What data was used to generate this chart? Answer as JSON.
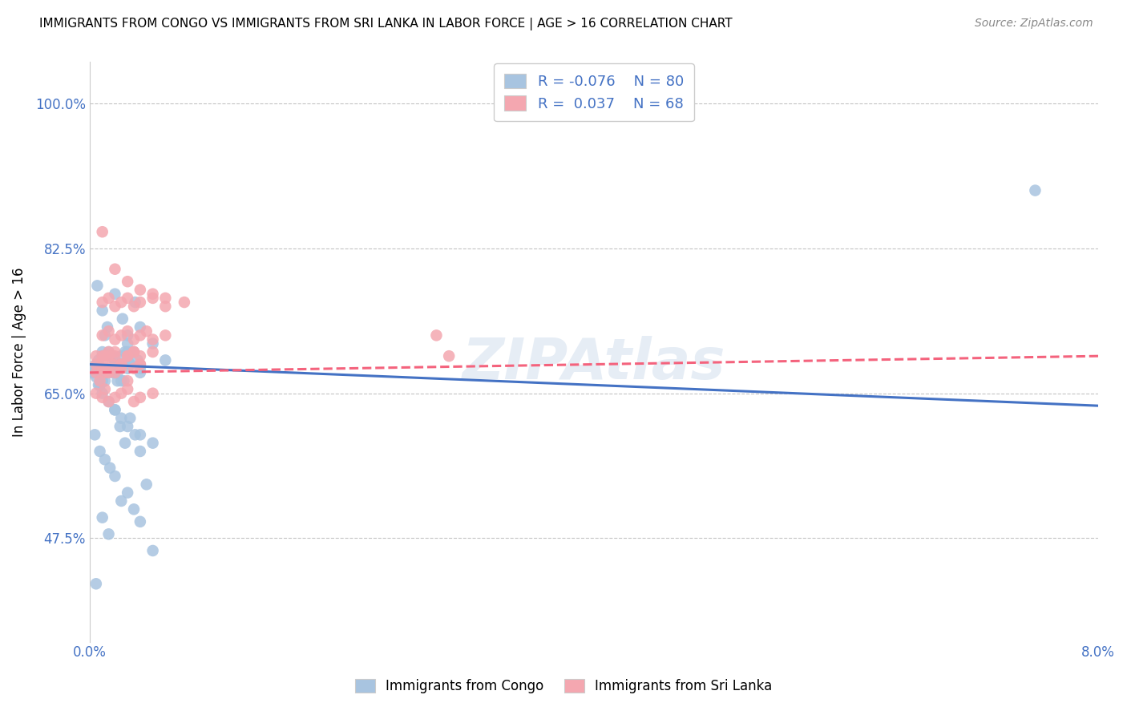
{
  "title": "IMMIGRANTS FROM CONGO VS IMMIGRANTS FROM SRI LANKA IN LABOR FORCE | AGE > 16 CORRELATION CHART",
  "source": "Source: ZipAtlas.com",
  "ylabel": "In Labor Force | Age > 16",
  "xlim": [
    0.0,
    0.08
  ],
  "ylim": [
    0.35,
    1.05
  ],
  "yticks": [
    0.475,
    0.65,
    0.825,
    1.0
  ],
  "ytick_labels": [
    "47.5%",
    "65.0%",
    "82.5%",
    "100.0%"
  ],
  "xticks": [
    0.0,
    0.08
  ],
  "xtick_labels": [
    "0.0%",
    "8.0%"
  ],
  "congo_R": -0.076,
  "congo_N": 80,
  "srilanka_R": 0.037,
  "srilanka_N": 68,
  "congo_color": "#a8c4e0",
  "srilanka_color": "#f4a7b0",
  "congo_line_color": "#4472c4",
  "srilanka_line_color": "#f4637d",
  "watermark": "ZIPAtlas",
  "legend_label_congo": "Immigrants from Congo",
  "legend_label_srilanka": "Immigrants from Sri Lanka",
  "congo_line_x": [
    0.0,
    0.08
  ],
  "congo_line_y": [
    0.685,
    0.635
  ],
  "srilanka_line_x": [
    0.0,
    0.08
  ],
  "srilanka_line_y": [
    0.675,
    0.695
  ],
  "congo_x": [
    0.0005,
    0.001,
    0.0008,
    0.0012,
    0.0015,
    0.0018,
    0.002,
    0.0022,
    0.0025,
    0.003,
    0.0005,
    0.001,
    0.0007,
    0.0009,
    0.0015,
    0.002,
    0.0025,
    0.003,
    0.0035,
    0.004,
    0.0005,
    0.001,
    0.0012,
    0.0018,
    0.002,
    0.0022,
    0.0028,
    0.003,
    0.0038,
    0.004,
    0.0003,
    0.0007,
    0.001,
    0.0013,
    0.0016,
    0.002,
    0.0023,
    0.0027,
    0.003,
    0.0032,
    0.0005,
    0.001,
    0.0015,
    0.002,
    0.0025,
    0.003,
    0.0035,
    0.004,
    0.0045,
    0.005,
    0.0004,
    0.0008,
    0.0012,
    0.0016,
    0.002,
    0.0024,
    0.0028,
    0.0032,
    0.0036,
    0.004,
    0.0006,
    0.001,
    0.0014,
    0.002,
    0.0026,
    0.003,
    0.0036,
    0.004,
    0.005,
    0.006,
    0.0004,
    0.0008,
    0.001,
    0.0015,
    0.002,
    0.0025,
    0.003,
    0.004,
    0.005,
    0.075
  ],
  "congo_y": [
    0.685,
    0.7,
    0.66,
    0.72,
    0.68,
    0.675,
    0.69,
    0.665,
    0.695,
    0.71,
    0.68,
    0.695,
    0.66,
    0.675,
    0.7,
    0.685,
    0.665,
    0.69,
    0.7,
    0.68,
    0.67,
    0.68,
    0.665,
    0.695,
    0.685,
    0.675,
    0.7,
    0.68,
    0.69,
    0.675,
    0.675,
    0.69,
    0.665,
    0.68,
    0.695,
    0.675,
    0.685,
    0.665,
    0.7,
    0.685,
    0.42,
    0.5,
    0.48,
    0.55,
    0.52,
    0.53,
    0.51,
    0.495,
    0.54,
    0.46,
    0.6,
    0.58,
    0.57,
    0.56,
    0.63,
    0.61,
    0.59,
    0.62,
    0.6,
    0.58,
    0.78,
    0.75,
    0.73,
    0.77,
    0.74,
    0.72,
    0.76,
    0.73,
    0.71,
    0.69,
    0.68,
    0.66,
    0.65,
    0.64,
    0.63,
    0.62,
    0.61,
    0.6,
    0.59,
    0.895
  ],
  "srilanka_x": [
    0.0005,
    0.001,
    0.0012,
    0.0015,
    0.0018,
    0.002,
    0.0025,
    0.003,
    0.0035,
    0.004,
    0.0005,
    0.001,
    0.0008,
    0.0012,
    0.0015,
    0.002,
    0.0025,
    0.003,
    0.0035,
    0.004,
    0.0005,
    0.001,
    0.0012,
    0.0015,
    0.002,
    0.0025,
    0.003,
    0.0035,
    0.004,
    0.005,
    0.0005,
    0.001,
    0.0012,
    0.0015,
    0.002,
    0.0025,
    0.003,
    0.0035,
    0.004,
    0.005,
    0.001,
    0.0015,
    0.002,
    0.0025,
    0.003,
    0.0035,
    0.004,
    0.0045,
    0.005,
    0.006,
    0.001,
    0.0015,
    0.002,
    0.0025,
    0.003,
    0.0035,
    0.004,
    0.005,
    0.006,
    0.0075,
    0.001,
    0.002,
    0.003,
    0.004,
    0.005,
    0.006,
    0.0275,
    0.0285
  ],
  "srilanka_y": [
    0.685,
    0.695,
    0.675,
    0.7,
    0.685,
    0.695,
    0.68,
    0.695,
    0.7,
    0.685,
    0.675,
    0.69,
    0.665,
    0.68,
    0.695,
    0.675,
    0.685,
    0.665,
    0.7,
    0.685,
    0.695,
    0.68,
    0.695,
    0.675,
    0.7,
    0.685,
    0.695,
    0.68,
    0.695,
    0.7,
    0.65,
    0.645,
    0.655,
    0.64,
    0.645,
    0.65,
    0.655,
    0.64,
    0.645,
    0.65,
    0.72,
    0.725,
    0.715,
    0.72,
    0.725,
    0.715,
    0.72,
    0.725,
    0.715,
    0.72,
    0.76,
    0.765,
    0.755,
    0.76,
    0.765,
    0.755,
    0.76,
    0.765,
    0.755,
    0.76,
    0.845,
    0.8,
    0.785,
    0.775,
    0.77,
    0.765,
    0.72,
    0.695
  ]
}
